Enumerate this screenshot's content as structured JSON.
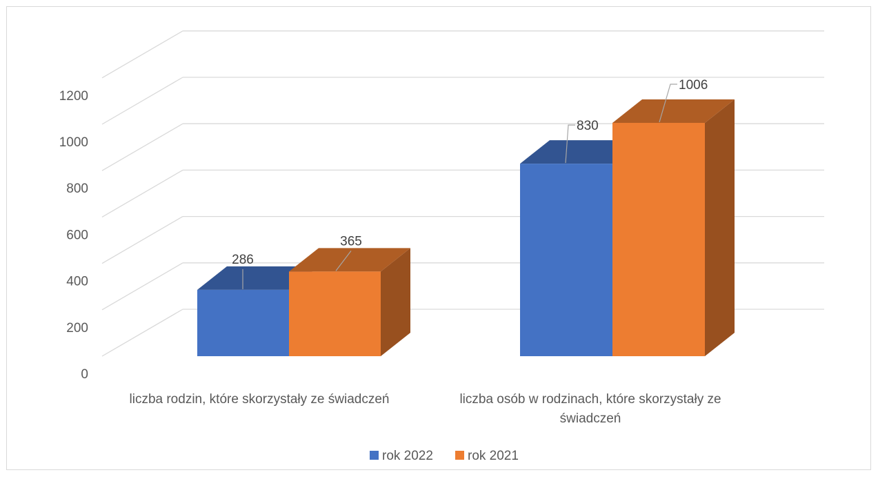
{
  "chart_data": {
    "type": "bar",
    "title": "",
    "xlabel": "",
    "ylabel": "",
    "ylim": [
      0,
      1200
    ],
    "y_ticks": [
      0,
      200,
      400,
      600,
      800,
      1000,
      1200
    ],
    "grid": true,
    "legend_position": "bottom",
    "categories": [
      [
        "liczba rodzin, które skorzystały ze świadczeń"
      ],
      [
        "liczba osób w rodzinach, które skorzystały ze",
        "świadczeń"
      ]
    ],
    "series": [
      {
        "name": "rok 2022",
        "values": [
          286,
          830
        ],
        "color": "#4472c4"
      },
      {
        "name": "rok 2021",
        "values": [
          365,
          1006
        ],
        "color": "#ed7d31"
      }
    ]
  }
}
